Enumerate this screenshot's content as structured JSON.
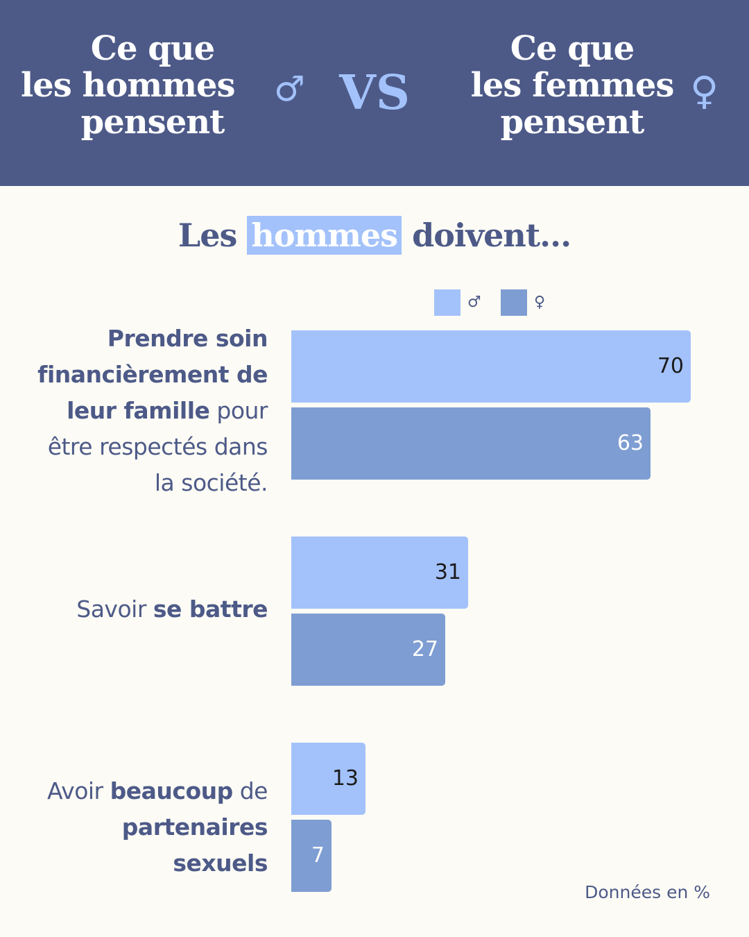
{
  "header": {
    "left_lines": [
      "Ce que",
      "les hommes",
      "pensent"
    ],
    "left_symbol": "♂",
    "vs": "VS",
    "right_lines": [
      "Ce que",
      "les femmes",
      "pensent"
    ],
    "right_symbol": "♀"
  },
  "subtitle": {
    "before": "Les",
    "highlight": "hommes",
    "after": "doivent..."
  },
  "legend": [
    {
      "symbol": "♂",
      "color": "#a3c2fb"
    },
    {
      "symbol": "♀",
      "color": "#7e9dd2"
    }
  ],
  "chart_data": {
    "type": "bar",
    "orientation": "horizontal",
    "unit": "%",
    "categories": [
      [
        {
          "text": "Prendre soin",
          "bold": true
        },
        {
          "text": "financièrement de",
          "bold": true
        },
        {
          "text": "leur famille",
          "bold": true,
          "inline_after": " pour"
        },
        {
          "text": "être respectés dans",
          "bold": false
        },
        {
          "text": "la société.",
          "bold": false
        }
      ],
      [
        {
          "text": "Savoir ",
          "bold": false,
          "inline_after_bold": "se battre"
        }
      ],
      [
        {
          "text": "Avoir ",
          "bold": false,
          "inline_after_bold": "beaucoup",
          "inline_tail": " de"
        },
        {
          "text": "partenaires",
          "bold": true
        },
        {
          "text": "sexuels",
          "bold": true
        }
      ]
    ],
    "series": [
      {
        "symbol": "♂",
        "color": "#a3c2fb",
        "values": [
          70,
          31,
          13
        ],
        "label_color": "#1a1a1a"
      },
      {
        "symbol": "♀",
        "color": "#7e9dd2",
        "values": [
          63,
          27,
          7
        ],
        "label_color": "#ffffff"
      }
    ],
    "xlim": [
      0,
      70
    ],
    "grid": false,
    "legend_position": "top-center"
  },
  "footnote": "Données en %"
}
